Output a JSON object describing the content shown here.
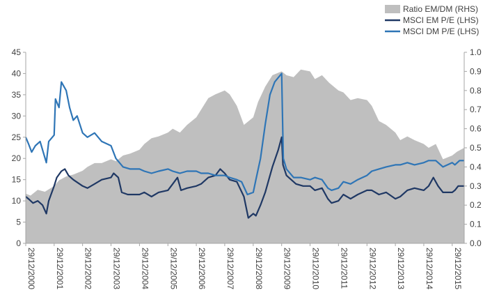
{
  "chart_data": {
    "type": "line",
    "title": "",
    "xlabel": "",
    "ylabel_left": "",
    "ylabel_right": "",
    "ylim_left": [
      0,
      45
    ],
    "ylim_right": [
      0,
      1.0
    ],
    "yticks_left": [
      "0",
      "5",
      "10",
      "15",
      "20",
      "25",
      "30",
      "35",
      "40",
      "45"
    ],
    "yticks_right": [
      "0.0",
      "0.1",
      "0.2",
      "0.3",
      "0.4",
      "0.5",
      "0.6",
      "0.7",
      "0.8",
      "0.9",
      "1.0"
    ],
    "x_ticks": [
      "29/12/2000",
      "29/12/2001",
      "29/12/2002",
      "29/12/2003",
      "29/12/2004",
      "29/12/2005",
      "29/12/2006",
      "29/12/2007",
      "29/12/2008",
      "29/12/2009",
      "29/12/2010",
      "29/12/2011",
      "29/12/2012",
      "29/12/2013",
      "29/12/2014",
      "29/12/2015"
    ],
    "x_start": "2000-12-29",
    "x_end": "2016-05-31",
    "grid": false,
    "legend_position": "top-right",
    "series": [
      {
        "name": "Ratio EM/DM (RHS)",
        "type": "area",
        "axis": "right",
        "color": "#bfbfbf",
        "points": [
          [
            "2000-12-29",
            0.26
          ],
          [
            "2001-03-01",
            0.25
          ],
          [
            "2001-06-01",
            0.28
          ],
          [
            "2001-09-01",
            0.27
          ],
          [
            "2001-12-29",
            0.3
          ],
          [
            "2002-03-01",
            0.33
          ],
          [
            "2002-06-01",
            0.35
          ],
          [
            "2002-09-01",
            0.36
          ],
          [
            "2002-12-29",
            0.38
          ],
          [
            "2003-03-01",
            0.4
          ],
          [
            "2003-06-01",
            0.42
          ],
          [
            "2003-09-01",
            0.42
          ],
          [
            "2003-12-29",
            0.44
          ],
          [
            "2004-03-01",
            0.43
          ],
          [
            "2004-06-01",
            0.46
          ],
          [
            "2004-09-01",
            0.47
          ],
          [
            "2004-12-29",
            0.49
          ],
          [
            "2005-03-01",
            0.52
          ],
          [
            "2005-06-01",
            0.55
          ],
          [
            "2005-09-01",
            0.56
          ],
          [
            "2005-12-29",
            0.58
          ],
          [
            "2006-03-01",
            0.6
          ],
          [
            "2006-06-01",
            0.58
          ],
          [
            "2006-09-01",
            0.62
          ],
          [
            "2006-12-29",
            0.66
          ],
          [
            "2007-03-01",
            0.7
          ],
          [
            "2007-06-01",
            0.76
          ],
          [
            "2007-09-01",
            0.78
          ],
          [
            "2007-12-29",
            0.8
          ],
          [
            "2008-03-01",
            0.78
          ],
          [
            "2008-06-01",
            0.72
          ],
          [
            "2008-09-01",
            0.62
          ],
          [
            "2008-12-29",
            0.66
          ],
          [
            "2009-03-01",
            0.74
          ],
          [
            "2009-06-01",
            0.82
          ],
          [
            "2009-09-01",
            0.88
          ],
          [
            "2009-12-29",
            0.9
          ],
          [
            "2010-03-01",
            0.88
          ],
          [
            "2010-06-01",
            0.87
          ],
          [
            "2010-09-01",
            0.91
          ],
          [
            "2010-12-29",
            0.9
          ],
          [
            "2011-03-01",
            0.86
          ],
          [
            "2011-06-01",
            0.88
          ],
          [
            "2011-09-01",
            0.84
          ],
          [
            "2011-12-29",
            0.8
          ],
          [
            "2012-03-01",
            0.79
          ],
          [
            "2012-06-01",
            0.75
          ],
          [
            "2012-09-01",
            0.76
          ],
          [
            "2012-12-29",
            0.75
          ],
          [
            "2013-03-01",
            0.72
          ],
          [
            "2013-06-01",
            0.64
          ],
          [
            "2013-09-01",
            0.62
          ],
          [
            "2013-12-29",
            0.58
          ],
          [
            "2014-03-01",
            0.54
          ],
          [
            "2014-06-01",
            0.56
          ],
          [
            "2014-09-01",
            0.54
          ],
          [
            "2014-12-29",
            0.52
          ],
          [
            "2015-03-01",
            0.5
          ],
          [
            "2015-06-01",
            0.52
          ],
          [
            "2015-09-01",
            0.44
          ],
          [
            "2015-12-29",
            0.46
          ],
          [
            "2016-03-01",
            0.48
          ],
          [
            "2016-05-31",
            0.5
          ]
        ]
      },
      {
        "name": "MSCI EM P/E (LHS)",
        "type": "line",
        "axis": "left",
        "color": "#1f3864",
        "points": [
          [
            "2000-12-29",
            11.0
          ],
          [
            "2001-02-01",
            10.5
          ],
          [
            "2001-04-01",
            9.5
          ],
          [
            "2001-06-01",
            10.0
          ],
          [
            "2001-08-01",
            9.0
          ],
          [
            "2001-09-20",
            7.0
          ],
          [
            "2001-10-20",
            10.0
          ],
          [
            "2001-12-29",
            13.5
          ],
          [
            "2002-02-01",
            15.5
          ],
          [
            "2002-04-01",
            17.0
          ],
          [
            "2002-05-15",
            17.5
          ],
          [
            "2002-07-01",
            16.0
          ],
          [
            "2002-09-01",
            15.0
          ],
          [
            "2002-12-29",
            13.5
          ],
          [
            "2003-03-01",
            13.0
          ],
          [
            "2003-06-01",
            14.0
          ],
          [
            "2003-09-01",
            15.0
          ],
          [
            "2003-12-29",
            15.5
          ],
          [
            "2004-02-01",
            16.5
          ],
          [
            "2004-04-01",
            15.5
          ],
          [
            "2004-05-15",
            12.0
          ],
          [
            "2004-08-01",
            11.5
          ],
          [
            "2004-12-29",
            11.5
          ],
          [
            "2005-03-01",
            12.0
          ],
          [
            "2005-06-01",
            11.0
          ],
          [
            "2005-09-01",
            12.0
          ],
          [
            "2005-12-29",
            12.5
          ],
          [
            "2006-03-01",
            14.0
          ],
          [
            "2006-05-01",
            15.5
          ],
          [
            "2006-06-15",
            12.5
          ],
          [
            "2006-09-01",
            13.0
          ],
          [
            "2006-12-29",
            13.5
          ],
          [
            "2007-03-01",
            14.0
          ],
          [
            "2007-06-01",
            15.5
          ],
          [
            "2007-09-01",
            16.0
          ],
          [
            "2007-11-01",
            17.5
          ],
          [
            "2007-12-29",
            16.5
          ],
          [
            "2008-03-01",
            15.0
          ],
          [
            "2008-06-01",
            14.5
          ],
          [
            "2008-09-01",
            11.0
          ],
          [
            "2008-10-27",
            6.0
          ],
          [
            "2008-12-29",
            7.0
          ],
          [
            "2009-02-01",
            6.5
          ],
          [
            "2009-04-01",
            9.0
          ],
          [
            "2009-06-01",
            12.0
          ],
          [
            "2009-09-01",
            18.0
          ],
          [
            "2009-11-15",
            22.0
          ],
          [
            "2009-12-29",
            25.0
          ],
          [
            "2010-01-15",
            18.5
          ],
          [
            "2010-03-01",
            16.0
          ],
          [
            "2010-05-01",
            15.0
          ],
          [
            "2010-07-01",
            14.0
          ],
          [
            "2010-10-01",
            13.5
          ],
          [
            "2010-12-29",
            13.5
          ],
          [
            "2011-03-01",
            12.5
          ],
          [
            "2011-06-01",
            13.0
          ],
          [
            "2011-08-15",
            10.5
          ],
          [
            "2011-10-01",
            9.5
          ],
          [
            "2011-12-29",
            10.0
          ],
          [
            "2012-03-01",
            11.5
          ],
          [
            "2012-06-01",
            10.5
          ],
          [
            "2012-09-01",
            11.5
          ],
          [
            "2012-12-29",
            12.5
          ],
          [
            "2013-03-01",
            12.5
          ],
          [
            "2013-06-01",
            11.5
          ],
          [
            "2013-09-01",
            12.0
          ],
          [
            "2013-12-29",
            10.5
          ],
          [
            "2014-03-01",
            11.0
          ],
          [
            "2014-06-01",
            12.5
          ],
          [
            "2014-09-01",
            13.0
          ],
          [
            "2014-12-29",
            12.5
          ],
          [
            "2015-03-01",
            13.5
          ],
          [
            "2015-05-01",
            15.5
          ],
          [
            "2015-07-01",
            13.5
          ],
          [
            "2015-09-01",
            12.0
          ],
          [
            "2015-12-29",
            12.0
          ],
          [
            "2016-02-01",
            12.5
          ],
          [
            "2016-03-15",
            13.5
          ],
          [
            "2016-05-31",
            13.5
          ]
        ]
      },
      {
        "name": "MSCI DM P/E (LHS)",
        "type": "line",
        "axis": "left",
        "color": "#2e75b6",
        "points": [
          [
            "2000-12-29",
            25.0
          ],
          [
            "2001-02-01",
            23.5
          ],
          [
            "2001-03-15",
            21.5
          ],
          [
            "2001-05-01",
            23.0
          ],
          [
            "2001-07-01",
            24.0
          ],
          [
            "2001-09-20",
            19.0
          ],
          [
            "2001-10-20",
            24.0
          ],
          [
            "2001-12-29",
            25.5
          ],
          [
            "2002-01-15",
            34.0
          ],
          [
            "2002-03-01",
            32.0
          ],
          [
            "2002-04-01",
            38.0
          ],
          [
            "2002-06-01",
            36.0
          ],
          [
            "2002-07-15",
            32.0
          ],
          [
            "2002-09-01",
            29.0
          ],
          [
            "2002-10-20",
            30.0
          ],
          [
            "2002-12-29",
            26.0
          ],
          [
            "2003-03-01",
            25.0
          ],
          [
            "2003-06-01",
            26.0
          ],
          [
            "2003-09-01",
            24.0
          ],
          [
            "2003-12-29",
            23.0
          ],
          [
            "2004-03-01",
            20.0
          ],
          [
            "2004-06-01",
            18.0
          ],
          [
            "2004-09-01",
            17.5
          ],
          [
            "2004-12-29",
            17.5
          ],
          [
            "2005-03-01",
            17.0
          ],
          [
            "2005-06-01",
            16.5
          ],
          [
            "2005-09-01",
            17.0
          ],
          [
            "2005-12-29",
            17.5
          ],
          [
            "2006-03-01",
            17.0
          ],
          [
            "2006-06-01",
            16.5
          ],
          [
            "2006-09-01",
            17.0
          ],
          [
            "2006-12-29",
            17.0
          ],
          [
            "2007-03-01",
            16.5
          ],
          [
            "2007-06-01",
            16.5
          ],
          [
            "2007-09-01",
            16.0
          ],
          [
            "2007-12-29",
            16.0
          ],
          [
            "2008-03-01",
            15.5
          ],
          [
            "2008-06-01",
            15.0
          ],
          [
            "2008-08-01",
            14.5
          ],
          [
            "2008-10-15",
            11.5
          ],
          [
            "2008-12-29",
            12.0
          ],
          [
            "2009-02-01",
            15.0
          ],
          [
            "2009-04-01",
            20.0
          ],
          [
            "2009-06-01",
            28.0
          ],
          [
            "2009-08-01",
            35.0
          ],
          [
            "2009-10-01",
            38.0
          ],
          [
            "2009-12-29",
            40.0
          ],
          [
            "2010-01-20",
            20.0
          ],
          [
            "2010-03-01",
            17.5
          ],
          [
            "2010-06-01",
            15.5
          ],
          [
            "2010-09-01",
            15.5
          ],
          [
            "2010-12-29",
            15.0
          ],
          [
            "2011-03-01",
            15.5
          ],
          [
            "2011-06-01",
            15.0
          ],
          [
            "2011-08-15",
            13.0
          ],
          [
            "2011-10-01",
            12.5
          ],
          [
            "2011-12-29",
            13.0
          ],
          [
            "2012-03-01",
            14.5
          ],
          [
            "2012-06-01",
            14.0
          ],
          [
            "2012-09-01",
            15.0
          ],
          [
            "2012-12-29",
            16.0
          ],
          [
            "2013-03-01",
            17.0
          ],
          [
            "2013-06-01",
            17.5
          ],
          [
            "2013-09-01",
            18.0
          ],
          [
            "2013-12-29",
            18.5
          ],
          [
            "2014-03-01",
            18.5
          ],
          [
            "2014-06-01",
            19.0
          ],
          [
            "2014-09-01",
            18.5
          ],
          [
            "2014-12-29",
            19.0
          ],
          [
            "2015-03-01",
            19.5
          ],
          [
            "2015-06-01",
            19.5
          ],
          [
            "2015-09-01",
            18.0
          ],
          [
            "2015-12-29",
            19.0
          ],
          [
            "2016-02-01",
            18.5
          ],
          [
            "2016-04-01",
            19.5
          ],
          [
            "2016-05-31",
            19.5
          ]
        ]
      }
    ]
  }
}
